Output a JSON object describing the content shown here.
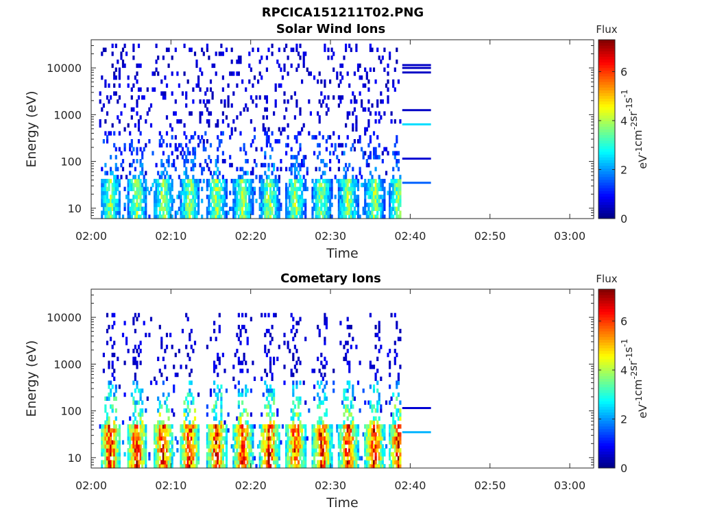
{
  "figure_title": "RPCICA151211T02.PNG",
  "colorbar": {
    "title": "Flux",
    "ticks": [
      "0",
      "2",
      "4",
      "6"
    ],
    "tick_values": [
      0,
      2,
      4,
      6
    ],
    "range": [
      0,
      7.3
    ],
    "label_parts": {
      "p1": "eV",
      "p1sup": "-1",
      "p2": "cm",
      "p2sup": "-2",
      "p3": "sr",
      "p3sup": "-1",
      "p4": "s",
      "p4sup": "-1"
    },
    "colormap": "jet"
  },
  "chart_data": [
    {
      "type": "heatmap",
      "title": "Solar Wind Ions",
      "xlabel": "Time",
      "ylabel": "Energy (eV)",
      "xlim": [
        "02:00",
        "03:03"
      ],
      "x_ticks": [
        "02:00",
        "02:10",
        "02:20",
        "02:30",
        "02:40",
        "02:50",
        "03:00"
      ],
      "y_scale": "log",
      "ylim": [
        6,
        40000
      ],
      "y_ticks": [
        "10",
        "100",
        "1000",
        "10000"
      ],
      "data_end_time": "02:39",
      "sweep_times_min": [
        2.3,
        5.6,
        8.9,
        12.2,
        15.6,
        18.9,
        22.2,
        25.5,
        28.8,
        32.1,
        35.4,
        38.4
      ],
      "low_energy_band_eV": [
        6,
        40
      ],
      "band_peak_flux": 4.2,
      "scattered_counts_max_energy_eV": 30000,
      "trailing_lines": [
        {
          "energy_eV": 11500,
          "flux": 0.5
        },
        {
          "energy_eV": 10000,
          "flux": 0.5
        },
        {
          "energy_eV": 8000,
          "flux": 0.5
        },
        {
          "energy_eV": 1250,
          "flux": 0.5
        },
        {
          "energy_eV": 620,
          "flux": 2.5
        },
        {
          "energy_eV": 115,
          "flux": 0.6
        },
        {
          "energy_eV": 35,
          "flux": 1.6
        }
      ]
    },
    {
      "type": "heatmap",
      "title": "Cometary Ions",
      "xlabel": "Time",
      "ylabel": "Energy (eV)",
      "xlim": [
        "02:00",
        "03:03"
      ],
      "x_ticks": [
        "02:00",
        "02:10",
        "02:20",
        "02:30",
        "02:40",
        "02:50",
        "03:00"
      ],
      "y_scale": "log",
      "ylim": [
        6,
        40000
      ],
      "y_ticks": [
        "10",
        "100",
        "1000",
        "10000"
      ],
      "data_end_time": "02:39",
      "sweep_times_min": [
        2.3,
        5.6,
        8.9,
        12.2,
        15.6,
        18.9,
        22.2,
        25.5,
        28.8,
        32.1,
        35.4,
        38.4
      ],
      "low_energy_band_eV": [
        6,
        45
      ],
      "band_peak_flux": 6.8,
      "scattered_counts_max_energy_eV": 12000,
      "trailing_lines": [
        {
          "energy_eV": 115,
          "flux": 0.6
        },
        {
          "energy_eV": 35,
          "flux": 2.2
        }
      ]
    }
  ]
}
